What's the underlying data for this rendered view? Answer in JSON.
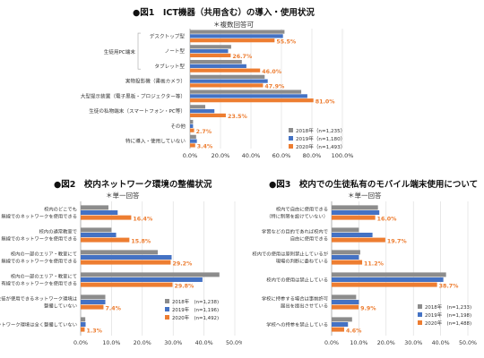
{
  "colors": {
    "s2018": "#8c8c8c",
    "s2019": "#4472c4",
    "s2020": "#ed7d31",
    "grid": "#d9d9d9",
    "axis": "#a6a6a6",
    "label": "#333333",
    "value": "#ed7d31"
  },
  "chart_data": [
    {
      "type": "bar",
      "orientation": "horizontal",
      "title": "●図1　ICT機器（共用含む）の導入・使用状況",
      "subtitle": "＊複数回答可",
      "xlim": [
        0,
        100
      ],
      "xticks": [
        "0.0%",
        "20.0%",
        "40.0%",
        "60.0%",
        "80.0%",
        "100.0%"
      ],
      "group_label": "生徒用PC端末",
      "categories": [
        "デスクトップ型",
        "ノート型",
        "タブレット型",
        "実物投影機（書画カメラ）",
        "大型提示装置（電子黒板・プロジェクター等）",
        "生徒の私物端末（スマートフォン・PC等）",
        "その他",
        "特に導入・使用していない"
      ],
      "series": [
        {
          "name": "2018年（n=1,235）",
          "values": [
            62.0,
            27.0,
            34.0,
            49.0,
            73.0,
            10.0,
            2.0,
            4.0
          ]
        },
        {
          "name": "2019年（n=1,180）",
          "values": [
            61.0,
            25.0,
            37.0,
            51.0,
            77.0,
            16.0,
            2.0,
            4.5
          ]
        },
        {
          "name": "2020年（n=1,493）",
          "values": [
            55.5,
            26.7,
            46.0,
            47.9,
            81.0,
            23.5,
            2.7,
            3.4
          ]
        }
      ],
      "value_labels": [
        "55.5%",
        "26.7%",
        "46.0%",
        "47.9%",
        "81.0%",
        "23.5%",
        "2.7%",
        "3.4%"
      ]
    },
    {
      "type": "bar",
      "orientation": "horizontal",
      "title": "●図2　校内ネットワーク環境の整備状況",
      "subtitle": "＊単一回答",
      "xlim": [
        0,
        50
      ],
      "xticks": [
        "0.0%",
        "10.0%",
        "20.0%",
        "30.0%",
        "40.0%",
        "50.0%"
      ],
      "categories": [
        [
          "校内のどこでも",
          "無線でのネットワークを使用できる"
        ],
        [
          "校内の通常教室で",
          "無線でのネットワークを使用できる"
        ],
        [
          "校内の一部のエリア・教室にて",
          "無線でのネットワークを使用できる"
        ],
        [
          "校内の一部のエリア・教室にて",
          "有線でのネットワークを使用できる"
        ],
        [
          "生徒が使用できるネットワーク環境は",
          "整備していない"
        ],
        [
          "ネットワーク環境は全く整備していない"
        ]
      ],
      "series": [
        {
          "name": "2018年　(n=1,238)",
          "values": [
            9.0,
            10.0,
            25.0,
            45.0,
            8.0,
            1.5
          ]
        },
        {
          "name": "2019年　(n=1,196)",
          "values": [
            12.0,
            11.5,
            29.5,
            39.5,
            8.0,
            1.6
          ]
        },
        {
          "name": "2020年　(n=1,492)",
          "values": [
            16.4,
            15.8,
            29.2,
            29.8,
            7.4,
            1.3
          ]
        }
      ],
      "value_labels": [
        "16.4%",
        "15.8%",
        "29.2%",
        "29.8%",
        "7.4%",
        "1.3%"
      ]
    },
    {
      "type": "bar",
      "orientation": "horizontal",
      "title": "●図3　校内での生徒私有のモバイル端末使用について",
      "subtitle": "＊単一回答",
      "xlim": [
        0,
        50
      ],
      "xticks": [
        "0.0%",
        "10.0%",
        "20.0%",
        "30.0%",
        "40.0%",
        "50.0%"
      ],
      "categories": [
        [
          "校内で自由に使用できる",
          "（特に制限を設けていない）"
        ],
        [
          "学習などの目的であれば校内で",
          "自由に使用できる"
        ],
        [
          "校内での使用は原則禁止しているが",
          "現場の判断に委ねている"
        ],
        [
          "校内での使用は禁止している"
        ],
        [
          "学校に持参する場合は事前許可",
          "届出を提出させている"
        ],
        [
          "学校への持参を禁止している"
        ]
      ],
      "series": [
        {
          "name": "2018年　(n=1,233)",
          "values": [
            17.0,
            10.0,
            10.5,
            42.0,
            9.0,
            7.5
          ]
        },
        {
          "name": "2019年　(n=1,198)",
          "values": [
            17.5,
            15.0,
            10.0,
            41.0,
            10.0,
            6.0
          ]
        },
        {
          "name": "2020年　(n=1,488)",
          "values": [
            16.0,
            19.7,
            11.2,
            38.7,
            9.9,
            4.6
          ]
        }
      ],
      "value_labels": [
        "16.0%",
        "19.7%",
        "11.2%",
        "38.7%",
        "9.9%",
        "4.6%"
      ]
    }
  ]
}
